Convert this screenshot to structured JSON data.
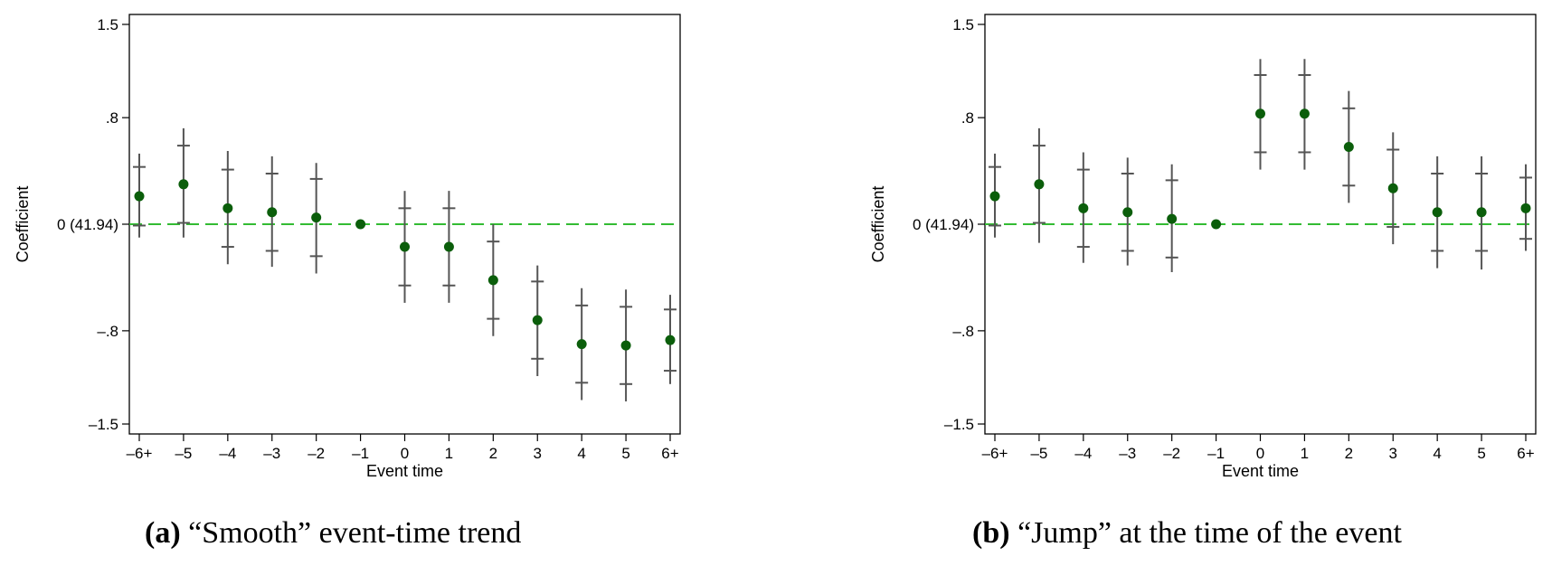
{
  "colors": {
    "point": "#0b5e0b",
    "ci": "#555555",
    "zero_line": "#33bb33",
    "frame": "#000000"
  },
  "chart_data": [
    {
      "type": "scatter",
      "caption_letter": "(a)",
      "caption_text": "“Smooth” event-time trend",
      "xlabel": "Event time",
      "ylabel": "Coefficient",
      "categories": [
        "–6+",
        "–5",
        "–4",
        "–3",
        "–2",
        "–1",
        "0",
        "1",
        "2",
        "3",
        "4",
        "5",
        "6+"
      ],
      "y_ticks": [
        {
          "value": 1.5,
          "label": "1.5"
        },
        {
          "value": 0.8,
          "label": ".8"
        },
        {
          "value": 0,
          "label": "0 (41.94)"
        },
        {
          "value": -0.8,
          "label": "–.8"
        },
        {
          "value": -1.5,
          "label": "–1.5"
        }
      ],
      "ylim": [
        -1.5,
        1.5
      ],
      "reference_line": 0,
      "grid": false,
      "series": [
        {
          "values": [
            0.21,
            0.3,
            0.12,
            0.09,
            0.05,
            0.0,
            -0.17,
            -0.17,
            -0.42,
            -0.72,
            -0.9,
            -0.91,
            -0.87
          ],
          "ci90_low": [
            -0.01,
            0.01,
            -0.17,
            -0.2,
            -0.24,
            0.0,
            -0.46,
            -0.46,
            -0.71,
            -1.01,
            -1.19,
            -1.2,
            -1.1
          ],
          "ci90_high": [
            0.43,
            0.59,
            0.41,
            0.38,
            0.34,
            0.0,
            0.12,
            0.12,
            -0.13,
            -0.43,
            -0.61,
            -0.62,
            -0.64
          ],
          "ci95_low": [
            -0.1,
            -0.1,
            -0.3,
            -0.32,
            -0.37,
            0.0,
            -0.59,
            -0.59,
            -0.84,
            -1.14,
            -1.32,
            -1.33,
            -1.2
          ],
          "ci95_high": [
            0.53,
            0.72,
            0.55,
            0.51,
            0.46,
            0.0,
            0.25,
            0.25,
            0.0,
            -0.31,
            -0.48,
            -0.49,
            -0.53
          ]
        }
      ]
    },
    {
      "type": "scatter",
      "caption_letter": "(b)",
      "caption_text": "“Jump” at the time of the event",
      "xlabel": "Event time",
      "ylabel": "Coefficient",
      "categories": [
        "–6+",
        "–5",
        "–4",
        "–3",
        "–2",
        "–1",
        "0",
        "1",
        "2",
        "3",
        "4",
        "5",
        "6+"
      ],
      "y_ticks": [
        {
          "value": 1.5,
          "label": "1.5"
        },
        {
          "value": 0.8,
          "label": ".8"
        },
        {
          "value": 0,
          "label": "0 (41.94)"
        },
        {
          "value": -0.8,
          "label": "–.8"
        },
        {
          "value": -1.5,
          "label": "–1.5"
        }
      ],
      "ylim": [
        -1.5,
        1.5
      ],
      "reference_line": 0,
      "grid": false,
      "series": [
        {
          "values": [
            0.21,
            0.3,
            0.12,
            0.09,
            0.04,
            0.0,
            0.83,
            0.83,
            0.58,
            0.27,
            0.09,
            0.09,
            0.12
          ],
          "ci90_low": [
            -0.01,
            0.01,
            -0.17,
            -0.2,
            -0.25,
            0.0,
            0.54,
            0.54,
            0.29,
            -0.02,
            -0.2,
            -0.2,
            -0.11
          ],
          "ci90_high": [
            0.43,
            0.59,
            0.41,
            0.38,
            0.33,
            0.0,
            1.12,
            1.12,
            0.87,
            0.56,
            0.38,
            0.38,
            0.35
          ],
          "ci95_low": [
            -0.1,
            -0.14,
            -0.29,
            -0.31,
            -0.36,
            0.0,
            0.41,
            0.41,
            0.16,
            -0.15,
            -0.33,
            -0.34,
            -0.2
          ],
          "ci95_high": [
            0.53,
            0.72,
            0.54,
            0.5,
            0.45,
            0.0,
            1.24,
            1.24,
            1.0,
            0.69,
            0.51,
            0.51,
            0.45
          ]
        }
      ]
    }
  ]
}
